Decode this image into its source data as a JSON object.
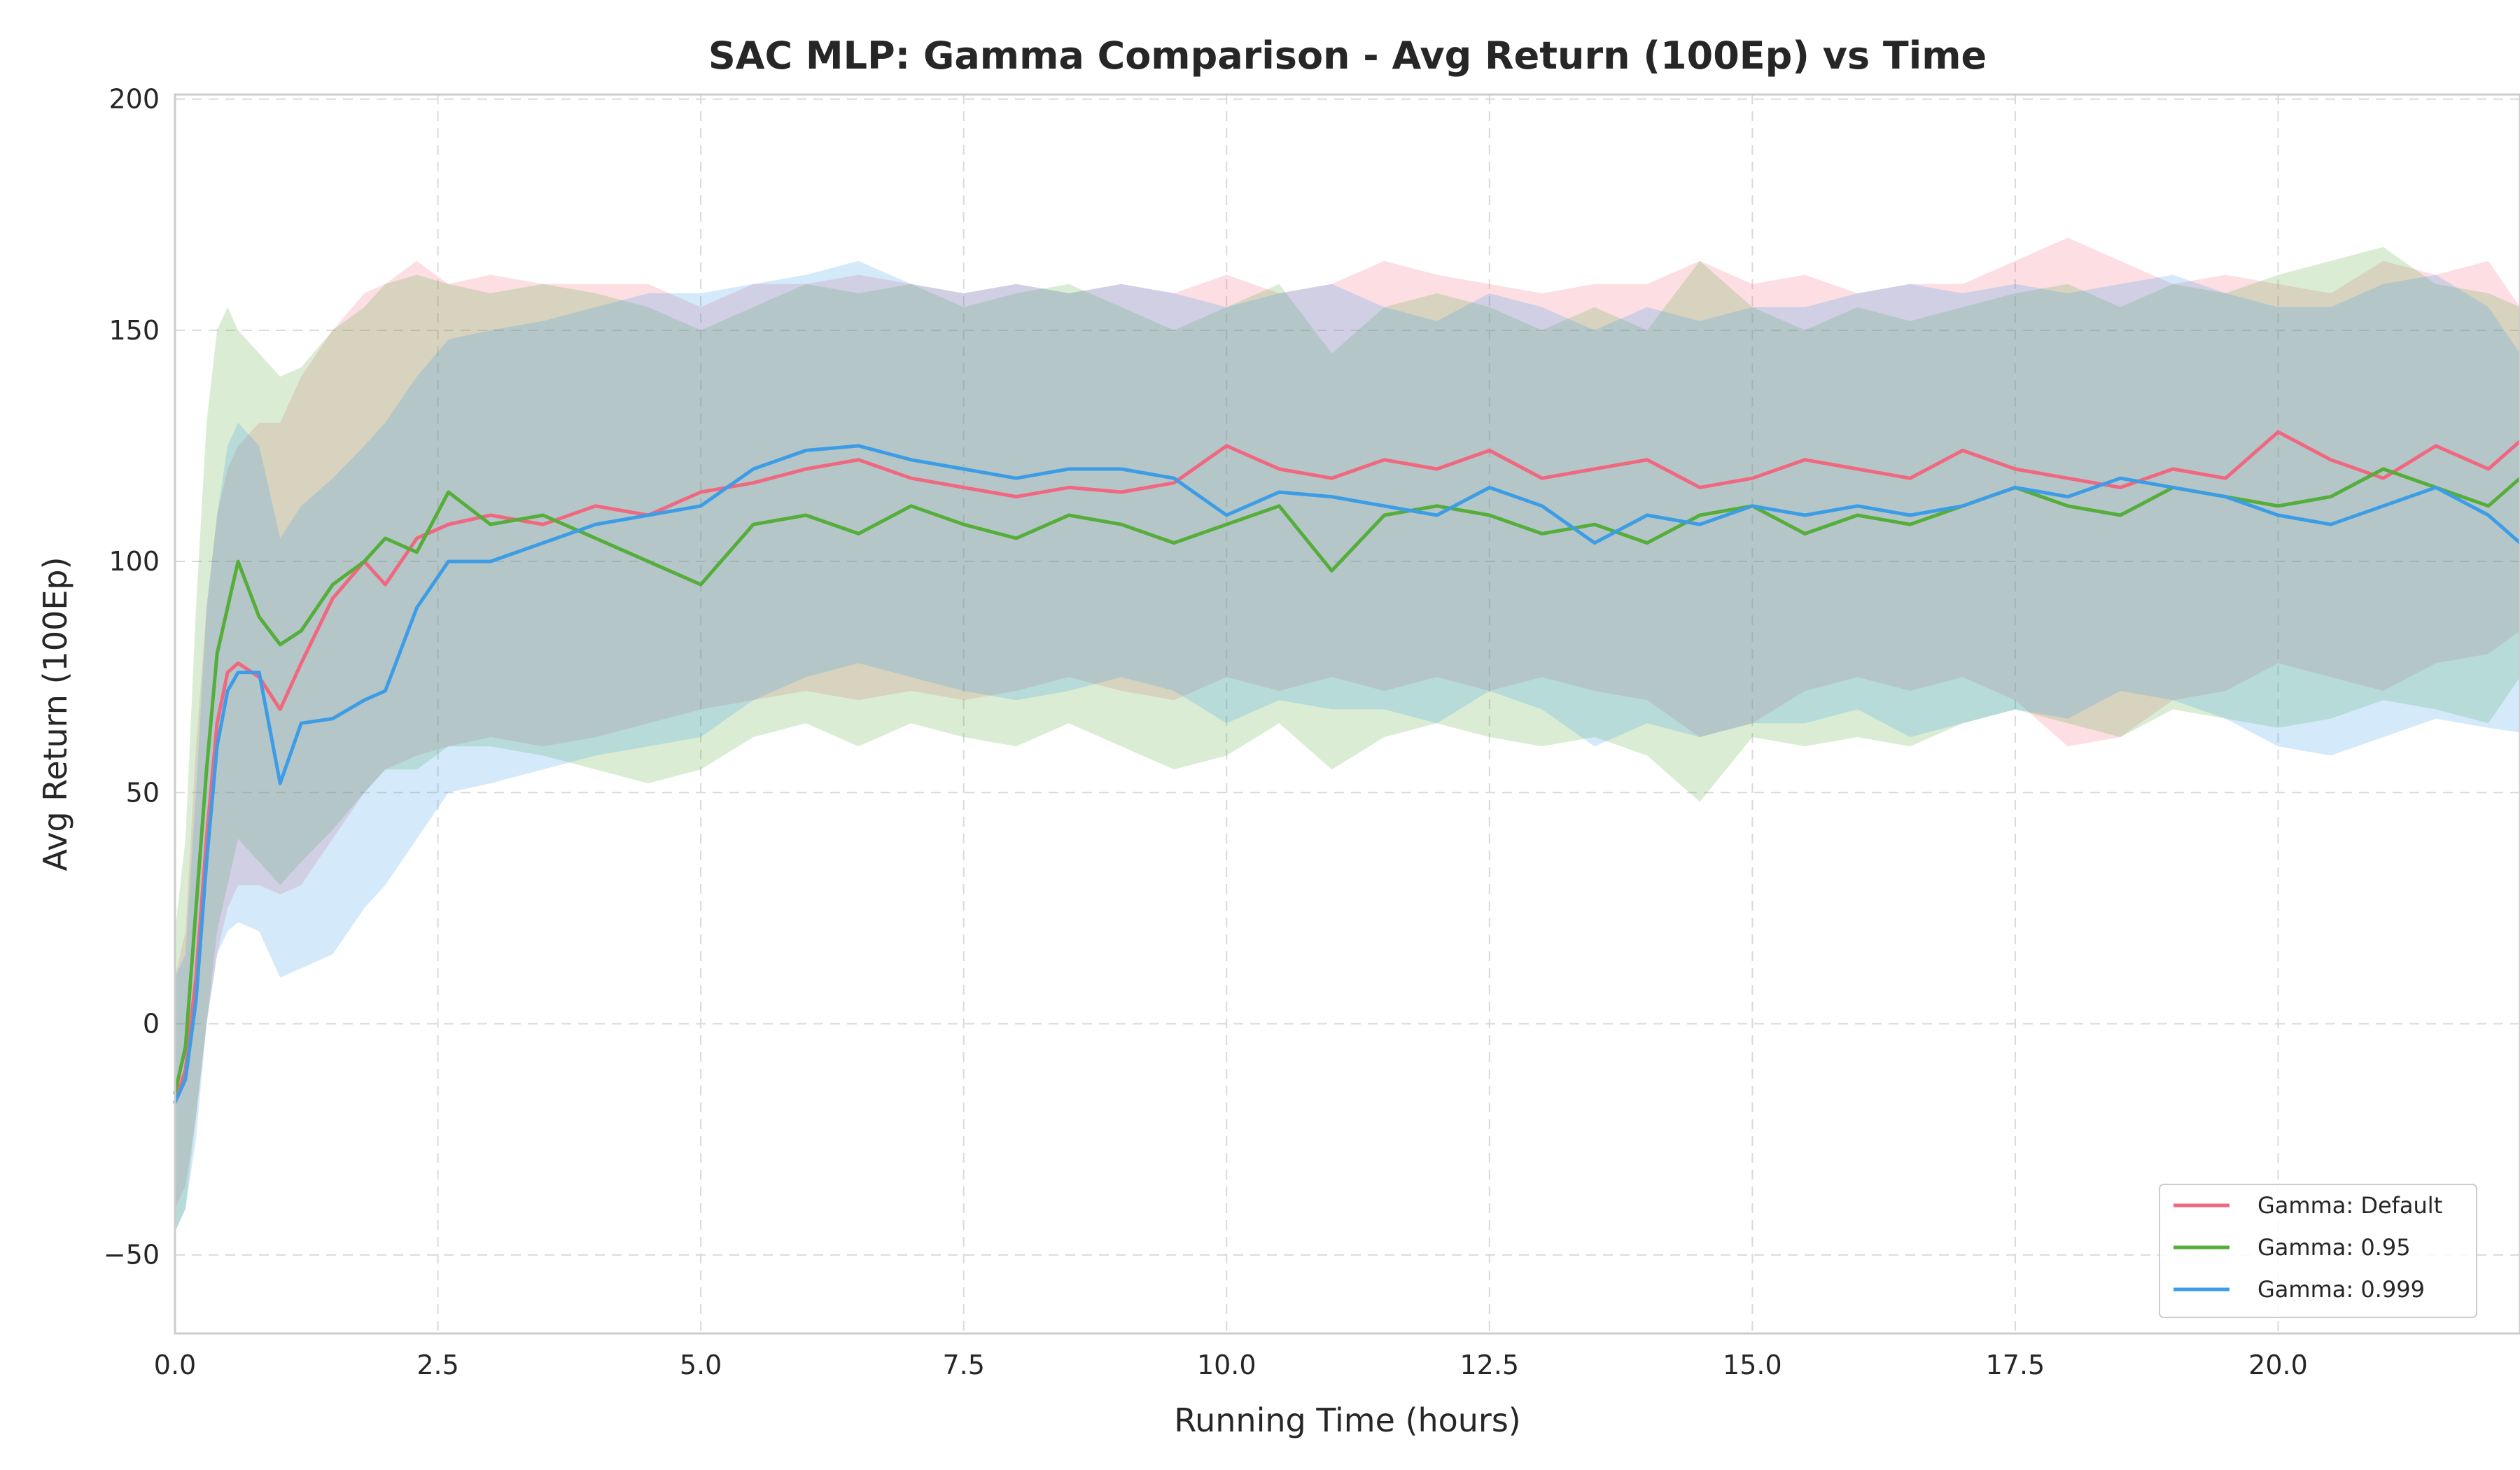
{
  "chart_data": {
    "type": "line",
    "title": "SAC MLP: Gamma Comparison - Avg Return (100Ep) vs Time",
    "xlabel": "Running Time (hours)",
    "ylabel": "Avg Return (100Ep)",
    "xlim": [
      0,
      22.3
    ],
    "ylim": [
      -67,
      201
    ],
    "xticks": [
      0,
      2.5,
      5,
      7.5,
      10,
      12.5,
      15,
      17.5,
      20
    ],
    "xtick_labels": [
      "0.0",
      "2.5",
      "5.0",
      "7.5",
      "10.0",
      "12.5",
      "15.0",
      "17.5",
      "20.0"
    ],
    "yticks": [
      -50,
      0,
      50,
      100,
      150,
      200
    ],
    "ytick_labels": [
      "−50",
      "0",
      "50",
      "100",
      "150",
      "200"
    ],
    "grid": true,
    "legend_position": "bottom-right",
    "series": [
      {
        "name": "Gamma: Default",
        "color": "#f0677f",
        "x": [
          0,
          0.1,
          0.2,
          0.3,
          0.4,
          0.5,
          0.6,
          0.8,
          1.0,
          1.2,
          1.5,
          1.8,
          2.0,
          2.3,
          2.6,
          3.0,
          3.5,
          4.0,
          4.5,
          5.0,
          5.5,
          6.0,
          6.5,
          7.0,
          7.5,
          8.0,
          8.5,
          9.0,
          9.5,
          10.0,
          10.5,
          11.0,
          11.5,
          12.0,
          12.5,
          13.0,
          13.5,
          14.0,
          14.5,
          15.0,
          15.5,
          16.0,
          16.5,
          17.0,
          17.5,
          18.0,
          18.5,
          19.0,
          19.5,
          20.0,
          20.5,
          21.0,
          21.5,
          22.0,
          22.3
        ],
        "y": [
          -17,
          -10,
          10,
          40,
          65,
          76,
          78,
          75,
          68,
          78,
          92,
          100,
          95,
          105,
          108,
          110,
          108,
          112,
          110,
          115,
          117,
          120,
          122,
          118,
          116,
          114,
          116,
          115,
          117,
          125,
          120,
          118,
          122,
          120,
          124,
          118,
          120,
          122,
          116,
          118,
          122,
          120,
          118,
          124,
          120,
          118,
          116,
          120,
          118,
          128,
          122,
          118,
          125,
          120,
          126
        ],
        "band_upper": [
          10,
          20,
          60,
          90,
          110,
          120,
          125,
          130,
          130,
          140,
          150,
          158,
          160,
          165,
          160,
          162,
          160,
          160,
          160,
          155,
          160,
          160,
          162,
          160,
          158,
          160,
          158,
          160,
          158,
          162,
          158,
          160,
          165,
          162,
          160,
          158,
          160,
          160,
          165,
          160,
          162,
          158,
          160,
          160,
          165,
          170,
          165,
          160,
          162,
          160,
          158,
          165,
          162,
          165,
          155
        ],
        "band_lower": [
          -40,
          -35,
          -20,
          0,
          15,
          25,
          30,
          30,
          28,
          30,
          40,
          50,
          55,
          58,
          60,
          62,
          60,
          62,
          65,
          68,
          70,
          72,
          70,
          72,
          70,
          72,
          75,
          72,
          70,
          75,
          72,
          75,
          72,
          75,
          72,
          75,
          72,
          70,
          62,
          65,
          72,
          75,
          72,
          75,
          70,
          60,
          62,
          70,
          72,
          78,
          75,
          72,
          78,
          80,
          85
        ]
      },
      {
        "name": "Gamma: 0.95",
        "color": "#55ad3a",
        "x": [
          0,
          0.1,
          0.2,
          0.3,
          0.4,
          0.5,
          0.6,
          0.8,
          1.0,
          1.2,
          1.5,
          1.8,
          2.0,
          2.3,
          2.6,
          3.0,
          3.5,
          4.0,
          4.5,
          5.0,
          5.5,
          6.0,
          6.5,
          7.0,
          7.5,
          8.0,
          8.5,
          9.0,
          9.5,
          10.0,
          10.5,
          11.0,
          11.5,
          12.0,
          12.5,
          13.0,
          13.5,
          14.0,
          14.5,
          15.0,
          15.5,
          16.0,
          16.5,
          17.0,
          17.5,
          18.0,
          18.5,
          19.0,
          19.5,
          20.0,
          20.5,
          21.0,
          21.5,
          22.0,
          22.3
        ],
        "y": [
          -15,
          -5,
          25,
          55,
          80,
          90,
          100,
          88,
          82,
          85,
          95,
          100,
          105,
          102,
          115,
          108,
          110,
          105,
          100,
          95,
          108,
          110,
          106,
          112,
          108,
          105,
          110,
          108,
          104,
          108,
          112,
          98,
          110,
          112,
          110,
          106,
          108,
          104,
          110,
          112,
          106,
          110,
          108,
          112,
          116,
          112,
          110,
          116,
          114,
          112,
          114,
          120,
          116,
          112,
          118
        ],
        "band_upper": [
          20,
          40,
          90,
          130,
          150,
          155,
          150,
          145,
          140,
          142,
          150,
          155,
          160,
          162,
          160,
          158,
          160,
          158,
          155,
          150,
          155,
          160,
          158,
          160,
          155,
          158,
          160,
          155,
          150,
          155,
          160,
          145,
          155,
          158,
          155,
          150,
          155,
          150,
          165,
          155,
          150,
          155,
          152,
          155,
          158,
          160,
          155,
          160,
          158,
          162,
          165,
          168,
          160,
          158,
          155
        ],
        "band_lower": [
          -45,
          -40,
          -20,
          0,
          20,
          30,
          40,
          35,
          30,
          35,
          42,
          50,
          55,
          55,
          60,
          60,
          58,
          55,
          52,
          55,
          62,
          65,
          60,
          65,
          62,
          60,
          65,
          60,
          55,
          58,
          65,
          55,
          62,
          65,
          62,
          60,
          62,
          58,
          48,
          62,
          60,
          62,
          60,
          65,
          68,
          65,
          62,
          68,
          66,
          64,
          66,
          70,
          68,
          65,
          75
        ]
      },
      {
        "name": "Gamma: 0.999",
        "color": "#3c9de6",
        "x": [
          0,
          0.1,
          0.2,
          0.3,
          0.4,
          0.5,
          0.6,
          0.8,
          1.0,
          1.2,
          1.5,
          1.8,
          2.0,
          2.3,
          2.6,
          3.0,
          3.5,
          4.0,
          4.5,
          5.0,
          5.5,
          6.0,
          6.5,
          7.0,
          7.5,
          8.0,
          8.5,
          9.0,
          9.5,
          10.0,
          10.5,
          11.0,
          11.5,
          12.0,
          12.5,
          13.0,
          13.5,
          14.0,
          14.5,
          15.0,
          15.5,
          16.0,
          16.5,
          17.0,
          17.5,
          18.0,
          18.5,
          19.0,
          19.5,
          20.0,
          20.5,
          21.0,
          21.5,
          22.0,
          22.3
        ],
        "y": [
          -17,
          -12,
          5,
          35,
          60,
          72,
          76,
          76,
          52,
          65,
          66,
          70,
          72,
          90,
          100,
          100,
          104,
          108,
          110,
          112,
          120,
          124,
          125,
          122,
          120,
          118,
          120,
          120,
          118,
          110,
          115,
          114,
          112,
          110,
          116,
          112,
          104,
          110,
          108,
          112,
          110,
          112,
          110,
          112,
          116,
          114,
          118,
          116,
          114,
          110,
          108,
          112,
          116,
          110,
          104
        ],
        "band_upper": [
          10,
          15,
          50,
          90,
          110,
          125,
          130,
          125,
          105,
          112,
          118,
          125,
          130,
          140,
          148,
          150,
          152,
          155,
          158,
          158,
          160,
          162,
          165,
          160,
          158,
          160,
          158,
          160,
          158,
          155,
          158,
          160,
          155,
          152,
          158,
          155,
          150,
          155,
          152,
          155,
          155,
          158,
          160,
          158,
          160,
          158,
          160,
          162,
          158,
          155,
          155,
          160,
          162,
          155,
          145
        ],
        "band_lower": [
          -45,
          -40,
          -25,
          0,
          15,
          20,
          22,
          20,
          10,
          12,
          15,
          25,
          30,
          40,
          50,
          52,
          55,
          58,
          60,
          62,
          70,
          75,
          78,
          75,
          72,
          70,
          72,
          75,
          72,
          65,
          70,
          68,
          68,
          65,
          72,
          68,
          60,
          65,
          62,
          65,
          65,
          68,
          62,
          65,
          68,
          66,
          72,
          70,
          66,
          60,
          58,
          62,
          66,
          64,
          63
        ]
      }
    ]
  }
}
